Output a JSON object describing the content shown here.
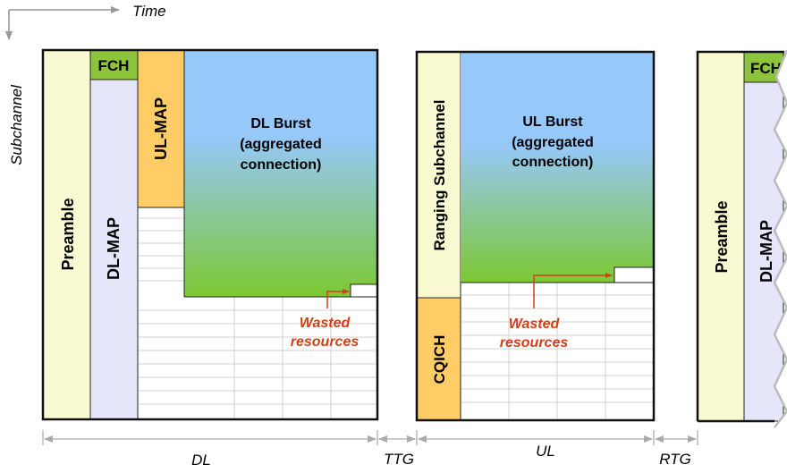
{
  "axes": {
    "time_label": "Time",
    "subchannel_label": "Subchannel"
  },
  "dl_frame": {
    "preamble": "Preamble",
    "fch": "FCH",
    "dl_map": "DL-MAP",
    "ul_map": "UL-MAP",
    "burst": {
      "line1": "DL Burst",
      "line2": "(aggregated",
      "line3": "connection)"
    },
    "wasted": {
      "line1": "Wasted",
      "line2": "resources"
    }
  },
  "ul_frame": {
    "ranging": "Ranging Subchannel",
    "cqich": "CQICH",
    "burst": {
      "line1": "UL Burst",
      "line2": "(aggregated",
      "line3": "connection)"
    },
    "wasted": {
      "line1": "Wasted",
      "line2": "resources"
    }
  },
  "next_frame": {
    "preamble": "Preamble",
    "fch": "FCH",
    "dl_map": "DL-MAP"
  },
  "spans": {
    "dl": "DL",
    "ttg": "TTG",
    "ul": "UL",
    "rtg": "RTG"
  },
  "colors": {
    "preamble": "#fafad2",
    "fch": "#8cc43c",
    "dl_map": "#e6e6fa",
    "ul_map": "#ffcc66",
    "burst_top": "#96c8fa",
    "burst_bottom": "#7dc832",
    "ranging": "#fafad2",
    "cqich": "#ffcc66",
    "wasted_text": "#d2401a"
  }
}
